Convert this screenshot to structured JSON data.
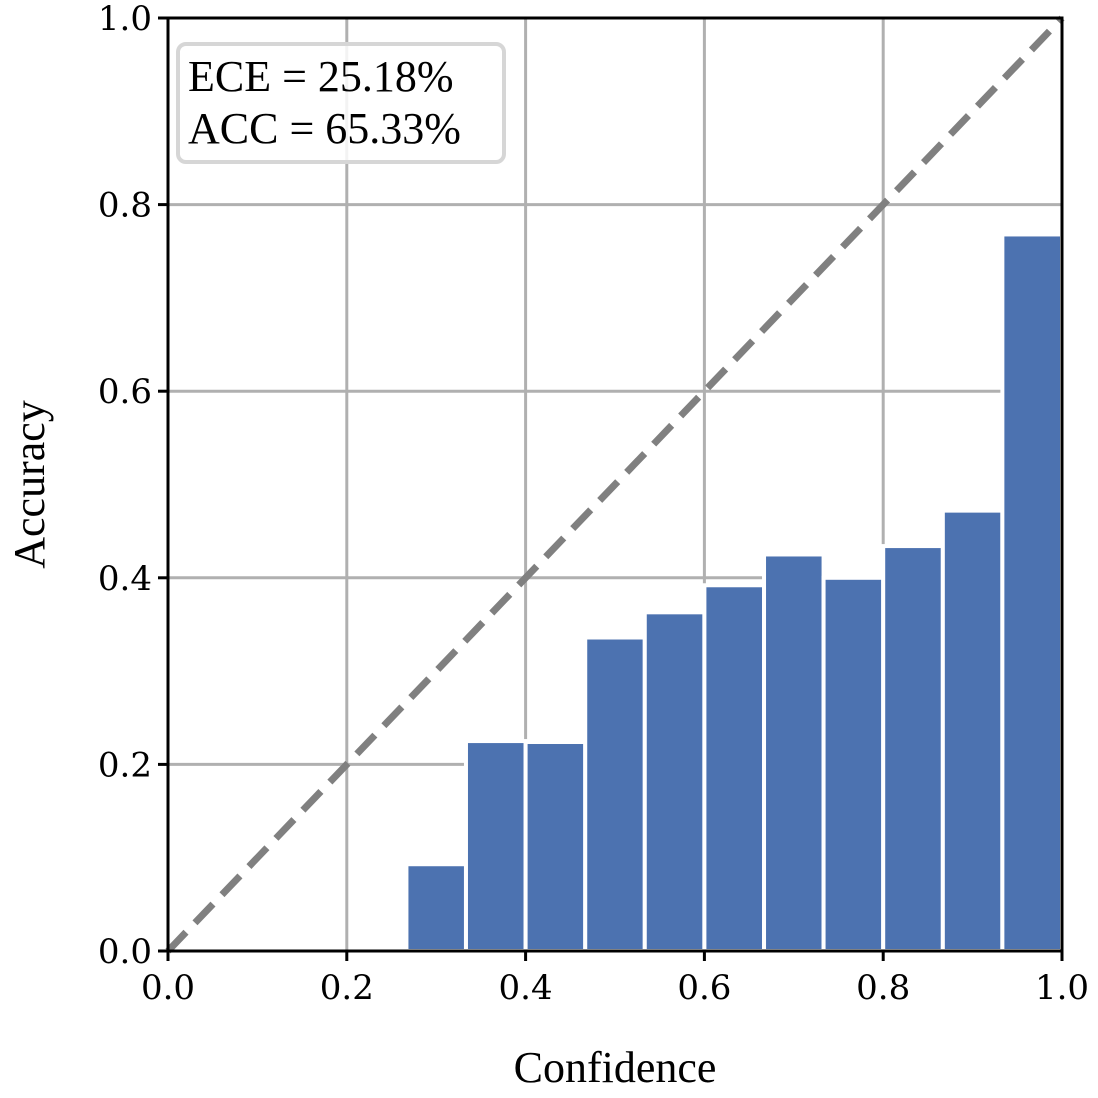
{
  "chart_data": {
    "type": "bar",
    "title": "",
    "xlabel": "Confidence",
    "ylabel": "Accuracy",
    "xlim": [
      0.0,
      1.0
    ],
    "ylim": [
      0.0,
      1.0
    ],
    "grid": true,
    "xticks": [
      "0.0",
      "0.2",
      "0.4",
      "0.6",
      "0.8",
      "1.0"
    ],
    "yticks": [
      "0.0",
      "0.2",
      "0.4",
      "0.6",
      "0.8",
      "1.0"
    ],
    "bins": [
      {
        "left": 0.2667,
        "right": 0.3333,
        "value": 0.093
      },
      {
        "left": 0.3333,
        "right": 0.4,
        "value": 0.225
      },
      {
        "left": 0.4,
        "right": 0.4667,
        "value": 0.224
      },
      {
        "left": 0.4667,
        "right": 0.5333,
        "value": 0.336
      },
      {
        "left": 0.5333,
        "right": 0.6,
        "value": 0.363
      },
      {
        "left": 0.6,
        "right": 0.6667,
        "value": 0.392
      },
      {
        "left": 0.6667,
        "right": 0.7333,
        "value": 0.425
      },
      {
        "left": 0.7333,
        "right": 0.8,
        "value": 0.4
      },
      {
        "left": 0.8,
        "right": 0.8667,
        "value": 0.434
      },
      {
        "left": 0.8667,
        "right": 0.9333,
        "value": 0.472
      },
      {
        "left": 0.9333,
        "right": 1.0,
        "value": 0.768
      }
    ],
    "reference_line": {
      "from": [
        0,
        0
      ],
      "to": [
        1,
        1
      ],
      "style": "dashed"
    },
    "legend": {
      "placement": "top-left",
      "lines": [
        "ECE = 25.18%",
        "ACC = 65.33%"
      ]
    },
    "colors": {
      "bar": "#4c72b0",
      "grid": "#b0b0b0",
      "reference": "#808080"
    }
  }
}
